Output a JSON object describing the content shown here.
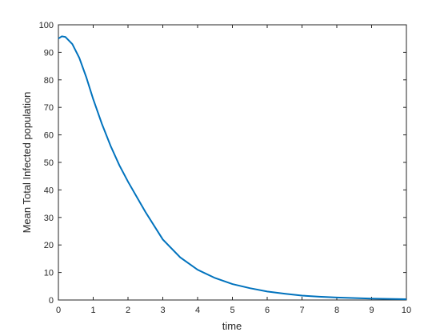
{
  "chart_data": {
    "type": "line",
    "x_label": "time",
    "y_label": "Mean Total Infected population",
    "x": [
      0,
      0.1,
      0.2,
      0.4,
      0.6,
      0.8,
      1,
      1.25,
      1.5,
      1.75,
      2,
      2.5,
      3,
      3.5,
      4,
      4.5,
      5,
      5.5,
      6,
      6.5,
      7,
      7.5,
      8,
      9,
      10
    ],
    "series": [
      {
        "color": "#0072bd",
        "values": [
          95,
          95.8,
          95.6,
          93,
          88,
          81,
          73,
          64,
          56,
          49,
          43,
          32,
          22,
          15.5,
          11,
          8,
          5.8,
          4.3,
          3.1,
          2.3,
          1.6,
          1.2,
          0.9,
          0.5,
          0.3
        ]
      }
    ],
    "xlim": [
      0,
      10
    ],
    "xticks": [
      0,
      1,
      2,
      3,
      4,
      5,
      6,
      7,
      8,
      9,
      10
    ],
    "ylim": [
      0,
      100
    ],
    "yticks": [
      0,
      10,
      20,
      30,
      40,
      50,
      60,
      70,
      80,
      90,
      100
    ],
    "grid": false
  }
}
